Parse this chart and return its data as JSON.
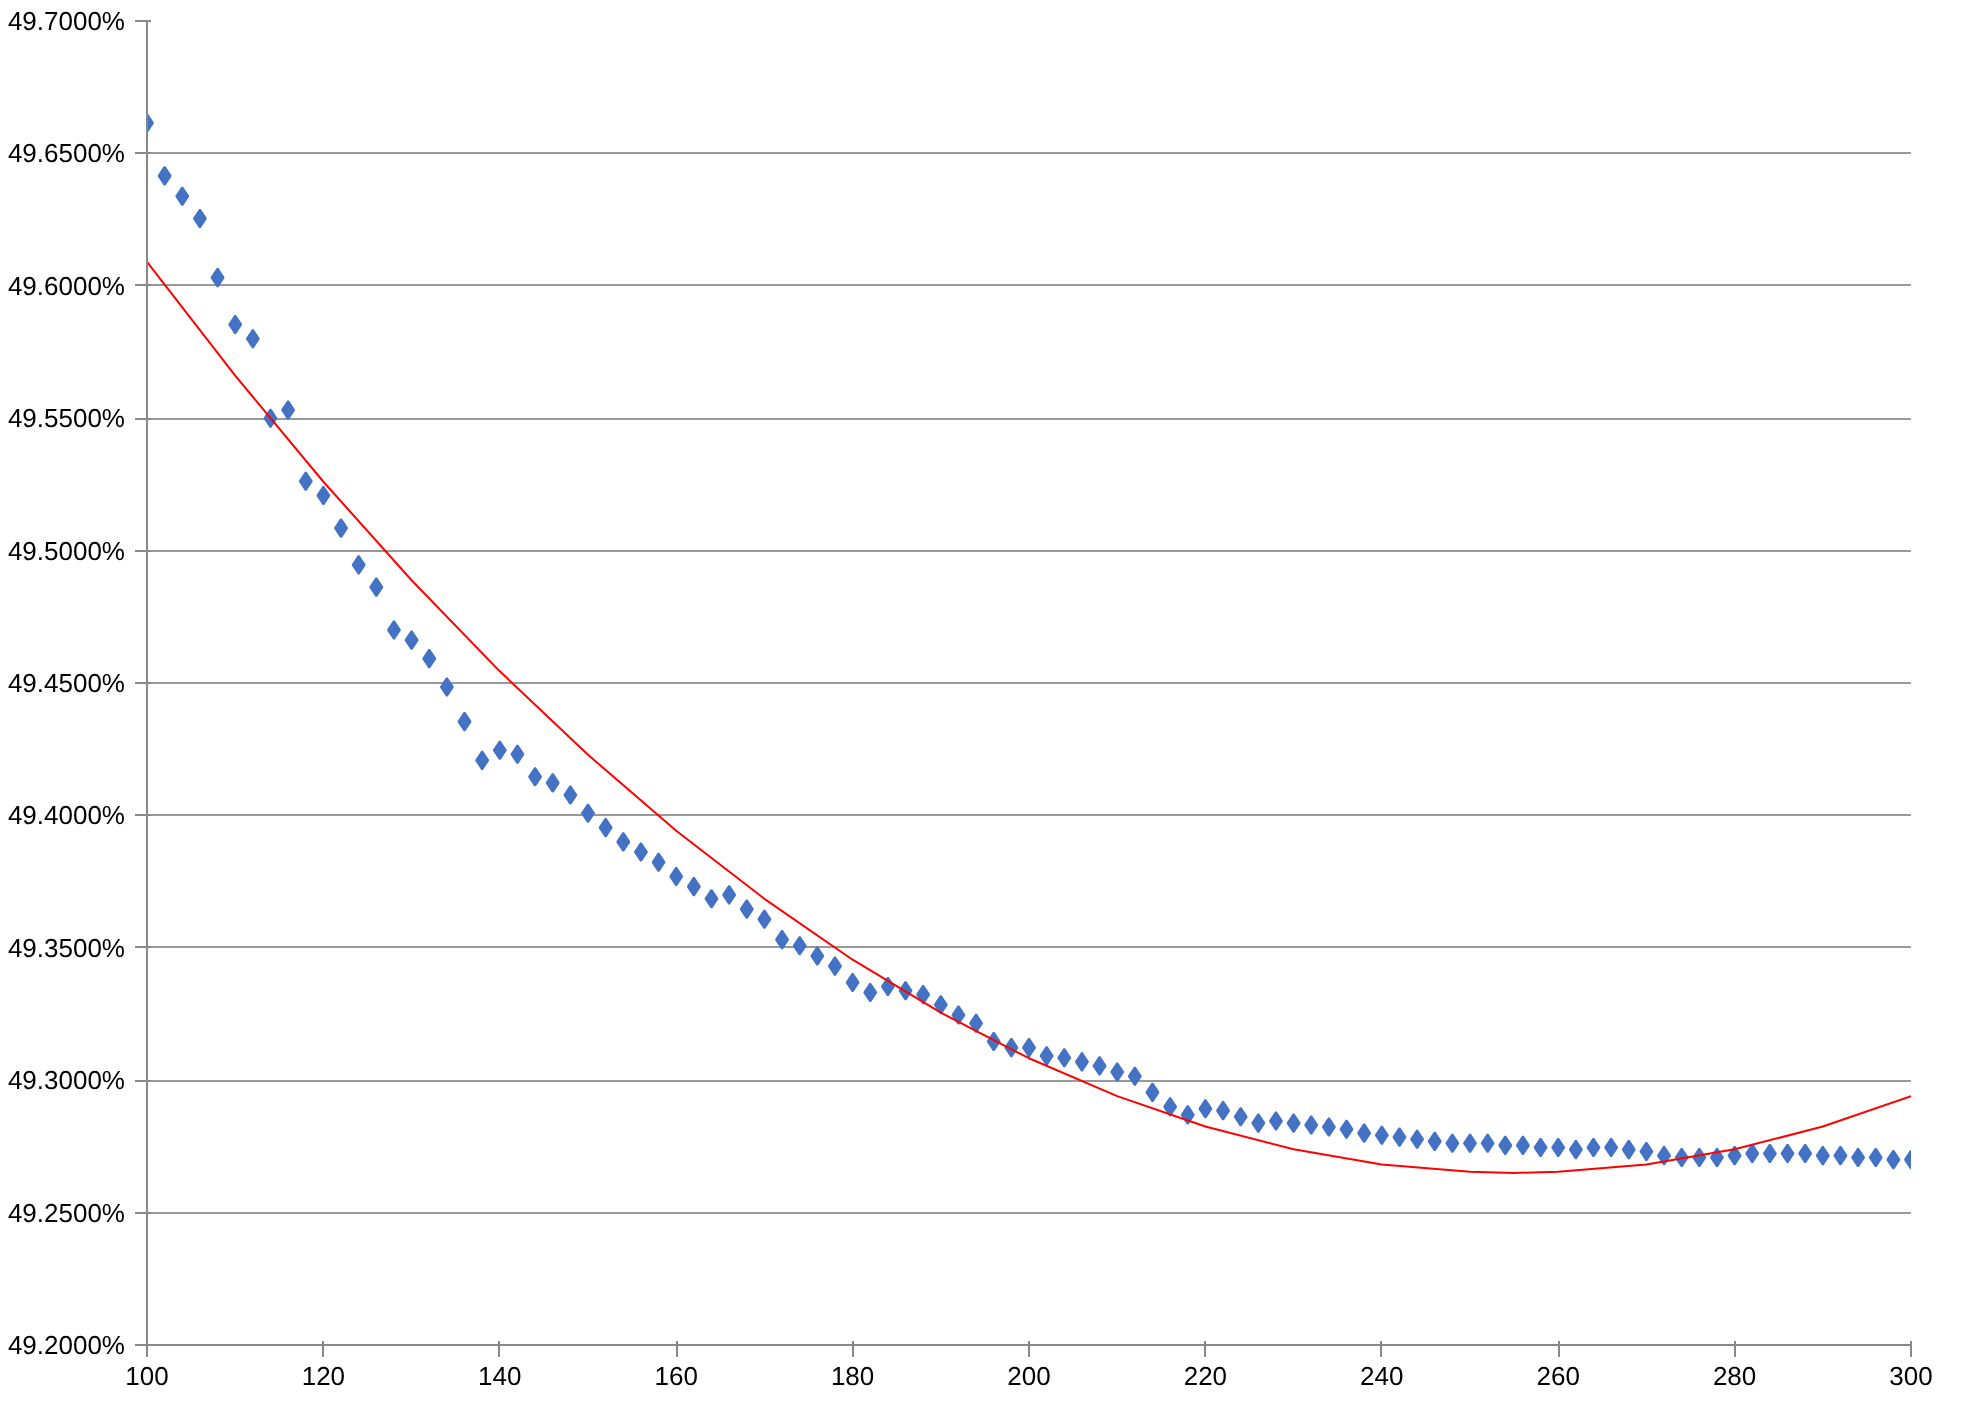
{
  "chart_data": {
    "type": "scatter",
    "grid": "y",
    "xlim": [
      100,
      300
    ],
    "xticks": [
      100,
      120,
      140,
      160,
      180,
      200,
      220,
      240,
      260,
      280,
      300
    ],
    "ylim": [
      49.2,
      49.7
    ],
    "yticks": [
      {
        "value": 49.2,
        "label": "49.2000%"
      },
      {
        "value": 49.25,
        "label": "49.2500%"
      },
      {
        "value": 49.3,
        "label": "49.3000%"
      },
      {
        "value": 49.35,
        "label": "49.3500%"
      },
      {
        "value": 49.4,
        "label": "49.4000%"
      },
      {
        "value": 49.45,
        "label": "49.4500%"
      },
      {
        "value": 49.5,
        "label": "49.5000%"
      },
      {
        "value": 49.55,
        "label": "49.5500%"
      },
      {
        "value": 49.6,
        "label": "49.6000%"
      },
      {
        "value": 49.65,
        "label": "49.6500%"
      },
      {
        "value": 49.7,
        "label": "49.7000%"
      }
    ],
    "series": [
      {
        "marker": "diamond",
        "color": "#4472c4",
        "x": [
          100,
          102,
          104,
          106,
          108,
          110,
          112,
          114,
          116,
          118,
          120,
          122,
          124,
          126,
          128,
          130,
          132,
          134,
          136,
          138,
          140,
          142,
          144,
          146,
          148,
          150,
          152,
          154,
          156,
          158,
          160,
          162,
          164,
          166,
          168,
          170,
          172,
          174,
          176,
          178,
          180,
          182,
          184,
          186,
          188,
          190,
          192,
          194,
          196,
          198,
          200,
          202,
          204,
          206,
          208,
          210,
          212,
          214,
          216,
          218,
          220,
          222,
          224,
          226,
          228,
          230,
          232,
          234,
          236,
          238,
          240,
          242,
          244,
          246,
          248,
          250,
          252,
          254,
          256,
          258,
          260,
          262,
          264,
          266,
          268,
          270,
          272,
          274,
          276,
          278,
          280,
          282,
          284,
          286,
          288,
          290,
          292,
          294,
          296,
          298,
          300
        ],
        "values": [
          49.6615,
          49.6415,
          49.6338,
          49.6254,
          49.6031,
          49.5854,
          49.58,
          49.55,
          49.5531,
          49.5262,
          49.5208,
          49.5085,
          49.4946,
          49.4862,
          49.47,
          49.4662,
          49.4592,
          49.4485,
          49.4354,
          49.4208,
          49.4246,
          49.4231,
          49.4146,
          49.4123,
          49.4077,
          49.4008,
          49.3954,
          49.39,
          49.3862,
          49.3823,
          49.3769,
          49.3731,
          49.3685,
          49.37,
          49.3646,
          49.3608,
          49.3531,
          49.3508,
          49.3469,
          49.3431,
          49.3369,
          49.3331,
          49.3354,
          49.3338,
          49.3323,
          49.3285,
          49.3246,
          49.3215,
          49.3146,
          49.3123,
          49.3123,
          49.3092,
          49.3085,
          49.3069,
          49.3054,
          49.3031,
          49.3015,
          49.2954,
          49.29,
          49.2869,
          49.2892,
          49.2885,
          49.2862,
          49.2838,
          49.2846,
          49.2838,
          49.2831,
          49.2823,
          49.2815,
          49.28,
          49.2792,
          49.2785,
          49.2777,
          49.2769,
          49.2762,
          49.2762,
          49.2762,
          49.2754,
          49.2754,
          49.2746,
          49.2746,
          49.2738,
          49.2746,
          49.2746,
          49.2738,
          49.2731,
          49.2715,
          49.2708,
          49.2708,
          49.2708,
          49.2715,
          49.2723,
          49.2723,
          49.2723,
          49.2723,
          49.2715,
          49.2715,
          49.2708,
          49.2708,
          49.27,
          49.27
        ]
      },
      {
        "type": "line",
        "color": "#ff0000",
        "x": [
          100,
          110,
          120,
          130,
          140,
          150,
          160,
          170,
          180,
          190,
          200,
          210,
          220,
          230,
          240,
          250,
          255,
          260,
          270,
          280,
          290,
          300
        ],
        "values": [
          49.609,
          49.5661,
          49.526,
          49.4888,
          49.4544,
          49.4229,
          49.3942,
          49.3685,
          49.3455,
          49.3255,
          49.3083,
          49.294,
          49.2825,
          49.2739,
          49.2682,
          49.2654,
          49.265,
          49.2654,
          49.2682,
          49.2739,
          49.2825,
          49.294
        ]
      }
    ]
  }
}
